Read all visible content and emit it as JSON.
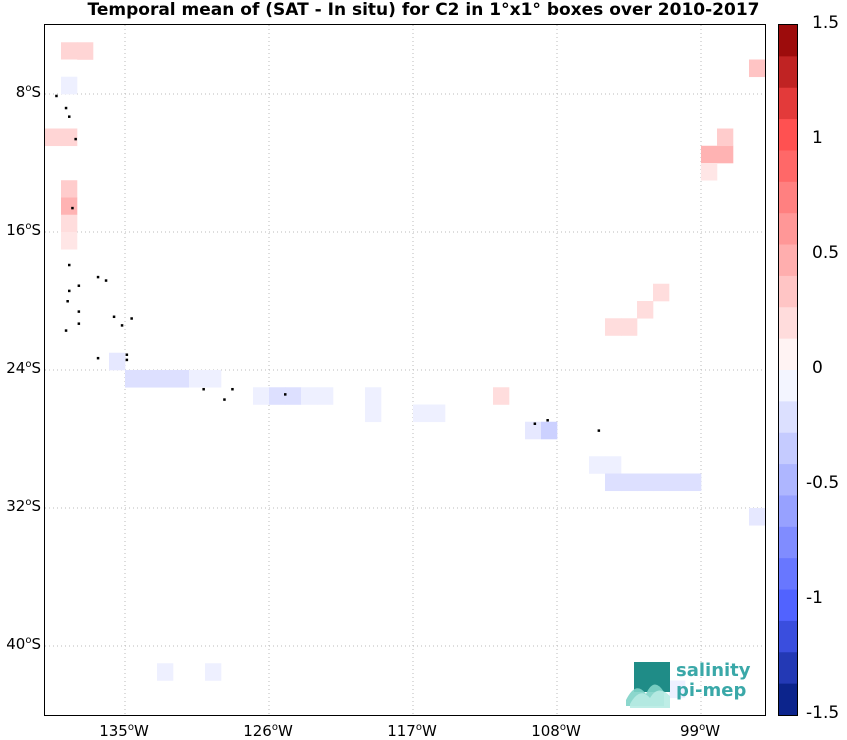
{
  "title": "Temporal mean of (SAT - In situ) for C2 in 1°x1° boxes over 2010-2017",
  "map": {
    "lon_range": [
      -140,
      -95
    ],
    "lat_range": [
      -44,
      -4
    ],
    "lat_ticks": [
      {
        "value": -8,
        "deg": "8",
        "hem": "S"
      },
      {
        "value": -16,
        "deg": "16",
        "hem": "S"
      },
      {
        "value": -24,
        "deg": "24",
        "hem": "S"
      },
      {
        "value": -32,
        "deg": "32",
        "hem": "S"
      },
      {
        "value": -40,
        "deg": "40",
        "hem": "S"
      }
    ],
    "lon_ticks": [
      {
        "value": -135,
        "deg": "135",
        "hem": "W"
      },
      {
        "value": -126,
        "deg": "126",
        "hem": "W"
      },
      {
        "value": -117,
        "deg": "117",
        "hem": "W"
      },
      {
        "value": -108,
        "deg": "108",
        "hem": "W"
      },
      {
        "value": -99,
        "deg": "99",
        "hem": "W"
      }
    ],
    "grid": true,
    "boxes": [
      {
        "lon": -138.5,
        "lat": -5.5,
        "value": 0.25
      },
      {
        "lon": -137.5,
        "lat": -5.5,
        "value": 0.25
      },
      {
        "lon": -138.5,
        "lat": -6.5,
        "value": 0.0
      },
      {
        "lon": -138.5,
        "lat": -7.5,
        "value": -0.1
      },
      {
        "lon": -139.5,
        "lat": -10.5,
        "value": 0.25
      },
      {
        "lon": -138.5,
        "lat": -10.5,
        "value": 0.25
      },
      {
        "lon": -138.5,
        "lat": -13.5,
        "value": 0.3
      },
      {
        "lon": -138.5,
        "lat": -14.5,
        "value": 0.45
      },
      {
        "lon": -138.5,
        "lat": -15.5,
        "value": 0.2
      },
      {
        "lon": -138.5,
        "lat": -16.5,
        "value": 0.15
      },
      {
        "lon": -135.5,
        "lat": -23.5,
        "value": -0.15
      },
      {
        "lon": -134.5,
        "lat": -24.5,
        "value": -0.2
      },
      {
        "lon": -133.5,
        "lat": -24.5,
        "value": -0.2
      },
      {
        "lon": -132.5,
        "lat": -24.5,
        "value": -0.2
      },
      {
        "lon": -131.5,
        "lat": -24.5,
        "value": -0.2
      },
      {
        "lon": -130.5,
        "lat": -24.5,
        "value": -0.1
      },
      {
        "lon": -129.5,
        "lat": -24.5,
        "value": -0.1
      },
      {
        "lon": -126.5,
        "lat": -25.5,
        "value": -0.1
      },
      {
        "lon": -125.5,
        "lat": -25.5,
        "value": -0.2
      },
      {
        "lon": -124.5,
        "lat": -25.5,
        "value": -0.2
      },
      {
        "lon": -123.5,
        "lat": -25.5,
        "value": -0.1
      },
      {
        "lon": -122.5,
        "lat": -25.5,
        "value": -0.1
      },
      {
        "lon": -119.5,
        "lat": -25.5,
        "value": -0.1
      },
      {
        "lon": -119.5,
        "lat": -26.5,
        "value": -0.1
      },
      {
        "lon": -116.5,
        "lat": -26.5,
        "value": -0.1
      },
      {
        "lon": -115.5,
        "lat": -26.5,
        "value": -0.1
      },
      {
        "lon": -111.5,
        "lat": -25.5,
        "value": 0.2
      },
      {
        "lon": -109.5,
        "lat": -27.5,
        "value": -0.15
      },
      {
        "lon": -108.5,
        "lat": -27.5,
        "value": -0.3
      },
      {
        "lon": -105.5,
        "lat": -29.5,
        "value": -0.1
      },
      {
        "lon": -104.5,
        "lat": -29.5,
        "value": -0.1
      },
      {
        "lon": -104.5,
        "lat": -30.5,
        "value": -0.2
      },
      {
        "lon": -103.5,
        "lat": -30.5,
        "value": -0.2
      },
      {
        "lon": -102.5,
        "lat": -30.5,
        "value": -0.2
      },
      {
        "lon": -101.5,
        "lat": -30.5,
        "value": -0.2
      },
      {
        "lon": -100.5,
        "lat": -30.5,
        "value": -0.2
      },
      {
        "lon": -99.5,
        "lat": -30.5,
        "value": -0.2
      },
      {
        "lon": -95.5,
        "lat": -32.5,
        "value": -0.15
      },
      {
        "lon": -104.5,
        "lat": -21.5,
        "value": 0.2
      },
      {
        "lon": -103.5,
        "lat": -21.5,
        "value": 0.2
      },
      {
        "lon": -102.5,
        "lat": -20.5,
        "value": 0.2
      },
      {
        "lon": -101.5,
        "lat": -19.5,
        "value": 0.2
      },
      {
        "lon": -98.5,
        "lat": -11.5,
        "value": 0.45
      },
      {
        "lon": -97.5,
        "lat": -11.5,
        "value": 0.45
      },
      {
        "lon": -97.5,
        "lat": -10.5,
        "value": 0.3
      },
      {
        "lon": -98.5,
        "lat": -12.5,
        "value": 0.15
      },
      {
        "lon": -95.5,
        "lat": -6.5,
        "value": 0.35
      },
      {
        "lon": -132.5,
        "lat": -41.5,
        "value": -0.1
      },
      {
        "lon": -129.5,
        "lat": -41.5,
        "value": -0.1
      },
      {
        "lon": -100.5,
        "lat": -42.5,
        "value": -0.1
      }
    ],
    "islands": [
      [
        -139.3,
        -8.1
      ],
      [
        -138.7,
        -8.8
      ],
      [
        -138.5,
        -9.3
      ],
      [
        -138.1,
        -10.6
      ],
      [
        -138.3,
        -14.6
      ],
      [
        -138.5,
        -17.9
      ],
      [
        -137.9,
        -19.1
      ],
      [
        -136.7,
        -18.6
      ],
      [
        -136.2,
        -18.8
      ],
      [
        -138.5,
        -19.4
      ],
      [
        -138.6,
        -20.0
      ],
      [
        -137.9,
        -20.6
      ],
      [
        -135.7,
        -20.9
      ],
      [
        -135.2,
        -21.4
      ],
      [
        -134.6,
        -21.0
      ],
      [
        -137.9,
        -21.3
      ],
      [
        -138.7,
        -21.7
      ],
      [
        -134.9,
        -23.1
      ],
      [
        -136.7,
        -23.3
      ],
      [
        -134.9,
        -23.4
      ],
      [
        -130.1,
        -25.1
      ],
      [
        -128.3,
        -25.1
      ],
      [
        -128.8,
        -25.7
      ],
      [
        -125.0,
        -25.4
      ],
      [
        -109.4,
        -27.1
      ],
      [
        -108.6,
        -26.9
      ],
      [
        -105.4,
        -27.5
      ]
    ]
  },
  "colorbar": {
    "min": -1.5,
    "max": 1.5,
    "levels": 22,
    "labels": [
      "1.5",
      "1",
      "0.5",
      "0",
      "-0.5",
      "-1",
      "-1.5"
    ],
    "label_values": [
      1.5,
      1,
      0.5,
      0,
      -0.5,
      -1,
      -1.5
    ]
  },
  "logo": {
    "line1": "salinity",
    "line2": "pi-mep"
  }
}
